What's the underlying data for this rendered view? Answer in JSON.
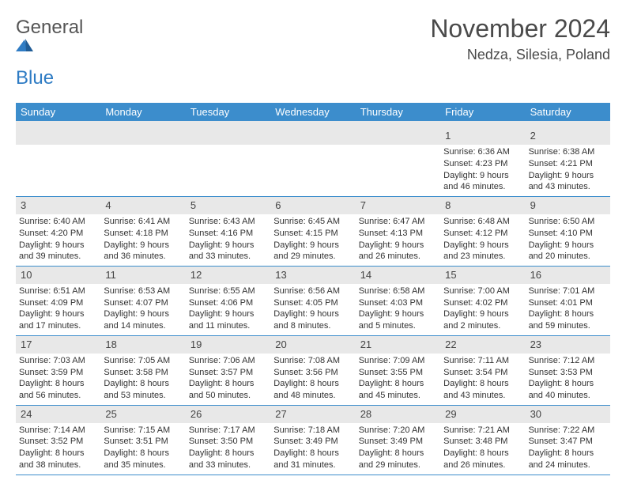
{
  "brand": {
    "word1": "General",
    "word2": "Blue"
  },
  "header": {
    "month_title": "November 2024",
    "location": "Nedza, Silesia, Poland"
  },
  "colors": {
    "accent": "#3c8dcc",
    "daybar": "#e8e8e8",
    "text": "#333333",
    "brand_gray": "#555555",
    "brand_blue": "#2f7cc4"
  },
  "dow": [
    "Sunday",
    "Monday",
    "Tuesday",
    "Wednesday",
    "Thursday",
    "Friday",
    "Saturday"
  ],
  "weeks": [
    [
      null,
      null,
      null,
      null,
      null,
      {
        "n": "1",
        "sr": "6:36 AM",
        "ss": "4:23 PM",
        "dl": "9 hours and 46 minutes."
      },
      {
        "n": "2",
        "sr": "6:38 AM",
        "ss": "4:21 PM",
        "dl": "9 hours and 43 minutes."
      }
    ],
    [
      {
        "n": "3",
        "sr": "6:40 AM",
        "ss": "4:20 PM",
        "dl": "9 hours and 39 minutes."
      },
      {
        "n": "4",
        "sr": "6:41 AM",
        "ss": "4:18 PM",
        "dl": "9 hours and 36 minutes."
      },
      {
        "n": "5",
        "sr": "6:43 AM",
        "ss": "4:16 PM",
        "dl": "9 hours and 33 minutes."
      },
      {
        "n": "6",
        "sr": "6:45 AM",
        "ss": "4:15 PM",
        "dl": "9 hours and 29 minutes."
      },
      {
        "n": "7",
        "sr": "6:47 AM",
        "ss": "4:13 PM",
        "dl": "9 hours and 26 minutes."
      },
      {
        "n": "8",
        "sr": "6:48 AM",
        "ss": "4:12 PM",
        "dl": "9 hours and 23 minutes."
      },
      {
        "n": "9",
        "sr": "6:50 AM",
        "ss": "4:10 PM",
        "dl": "9 hours and 20 minutes."
      }
    ],
    [
      {
        "n": "10",
        "sr": "6:51 AM",
        "ss": "4:09 PM",
        "dl": "9 hours and 17 minutes."
      },
      {
        "n": "11",
        "sr": "6:53 AM",
        "ss": "4:07 PM",
        "dl": "9 hours and 14 minutes."
      },
      {
        "n": "12",
        "sr": "6:55 AM",
        "ss": "4:06 PM",
        "dl": "9 hours and 11 minutes."
      },
      {
        "n": "13",
        "sr": "6:56 AM",
        "ss": "4:05 PM",
        "dl": "9 hours and 8 minutes."
      },
      {
        "n": "14",
        "sr": "6:58 AM",
        "ss": "4:03 PM",
        "dl": "9 hours and 5 minutes."
      },
      {
        "n": "15",
        "sr": "7:00 AM",
        "ss": "4:02 PM",
        "dl": "9 hours and 2 minutes."
      },
      {
        "n": "16",
        "sr": "7:01 AM",
        "ss": "4:01 PM",
        "dl": "8 hours and 59 minutes."
      }
    ],
    [
      {
        "n": "17",
        "sr": "7:03 AM",
        "ss": "3:59 PM",
        "dl": "8 hours and 56 minutes."
      },
      {
        "n": "18",
        "sr": "7:05 AM",
        "ss": "3:58 PM",
        "dl": "8 hours and 53 minutes."
      },
      {
        "n": "19",
        "sr": "7:06 AM",
        "ss": "3:57 PM",
        "dl": "8 hours and 50 minutes."
      },
      {
        "n": "20",
        "sr": "7:08 AM",
        "ss": "3:56 PM",
        "dl": "8 hours and 48 minutes."
      },
      {
        "n": "21",
        "sr": "7:09 AM",
        "ss": "3:55 PM",
        "dl": "8 hours and 45 minutes."
      },
      {
        "n": "22",
        "sr": "7:11 AM",
        "ss": "3:54 PM",
        "dl": "8 hours and 43 minutes."
      },
      {
        "n": "23",
        "sr": "7:12 AM",
        "ss": "3:53 PM",
        "dl": "8 hours and 40 minutes."
      }
    ],
    [
      {
        "n": "24",
        "sr": "7:14 AM",
        "ss": "3:52 PM",
        "dl": "8 hours and 38 minutes."
      },
      {
        "n": "25",
        "sr": "7:15 AM",
        "ss": "3:51 PM",
        "dl": "8 hours and 35 minutes."
      },
      {
        "n": "26",
        "sr": "7:17 AM",
        "ss": "3:50 PM",
        "dl": "8 hours and 33 minutes."
      },
      {
        "n": "27",
        "sr": "7:18 AM",
        "ss": "3:49 PM",
        "dl": "8 hours and 31 minutes."
      },
      {
        "n": "28",
        "sr": "7:20 AM",
        "ss": "3:49 PM",
        "dl": "8 hours and 29 minutes."
      },
      {
        "n": "29",
        "sr": "7:21 AM",
        "ss": "3:48 PM",
        "dl": "8 hours and 26 minutes."
      },
      {
        "n": "30",
        "sr": "7:22 AM",
        "ss": "3:47 PM",
        "dl": "8 hours and 24 minutes."
      }
    ]
  ],
  "labels": {
    "sunrise": "Sunrise: ",
    "sunset": "Sunset: ",
    "daylight": "Daylight: "
  }
}
